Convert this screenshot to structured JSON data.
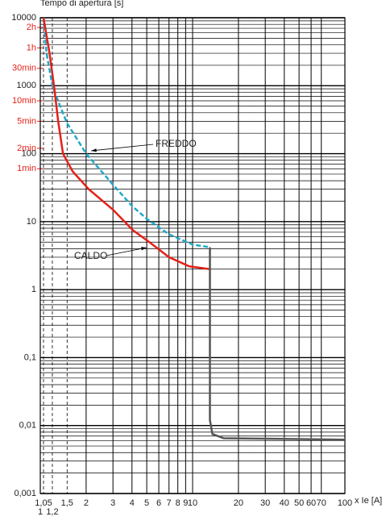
{
  "chart_data": {
    "type": "line",
    "title": "Tempo di apertura [s]",
    "x_label": "x Ie [A]",
    "log_x": true,
    "log_y": true,
    "grid": true,
    "xlim": [
      1,
      100
    ],
    "ylim": [
      0.001,
      10000
    ],
    "xticks": [
      1,
      {
        "value": 1.05,
        "label": "1,05"
      },
      {
        "value": 1.2,
        "label": "1,2"
      },
      {
        "value": 1.5,
        "label": "1,5"
      },
      2,
      3,
      4,
      5,
      6,
      7,
      8,
      9,
      10,
      20,
      30,
      40,
      50,
      60,
      70,
      100
    ],
    "yticks": [
      {
        "value": 0.001,
        "label": "0,001"
      },
      {
        "value": 0.01,
        "label": "0,01"
      },
      {
        "value": 0.1,
        "label": "0,1"
      },
      1,
      10,
      100,
      1000,
      10000
    ],
    "y_time_ticks": [
      {
        "value": 7200,
        "label": "2h"
      },
      {
        "value": 3600,
        "label": "1h"
      },
      {
        "value": 1800,
        "label": "30min"
      },
      {
        "value": 600,
        "label": "10min"
      },
      {
        "value": 300,
        "label": "5min"
      },
      {
        "value": 120,
        "label": "2min"
      },
      {
        "value": 60,
        "label": "1min"
      }
    ],
    "time_tick_color": "#e32119",
    "series": [
      {
        "name": "FREDDO",
        "color": "#1fa8c9",
        "dashed": true,
        "x": [
          1.05,
          1.1,
          1.2,
          1.35,
          1.5,
          2,
          3,
          4,
          5,
          7,
          10,
          13
        ],
        "values": [
          10000,
          3000,
          1000,
          500,
          280,
          100,
          35,
          17,
          11,
          6.5,
          4.6,
          4.2
        ]
      },
      {
        "name": "CALDO",
        "color": "#e32119",
        "dashed": false,
        "x": [
          1.05,
          1.15,
          1.23,
          1.31,
          1.41,
          1.63,
          2.08,
          3,
          4.05,
          5.2,
          7,
          9.5,
          13
        ],
        "values": [
          10000,
          3000,
          1000,
          300,
          100,
          55,
          30,
          15,
          7.5,
          5,
          3,
          2.2,
          2
        ]
      },
      {
        "color": "#555555",
        "dashed": false,
        "x": [
          13,
          13,
          13.5,
          16,
          100
        ],
        "values": [
          4.2,
          0.012,
          0.0075,
          0.0065,
          0.0062
        ]
      }
    ]
  }
}
